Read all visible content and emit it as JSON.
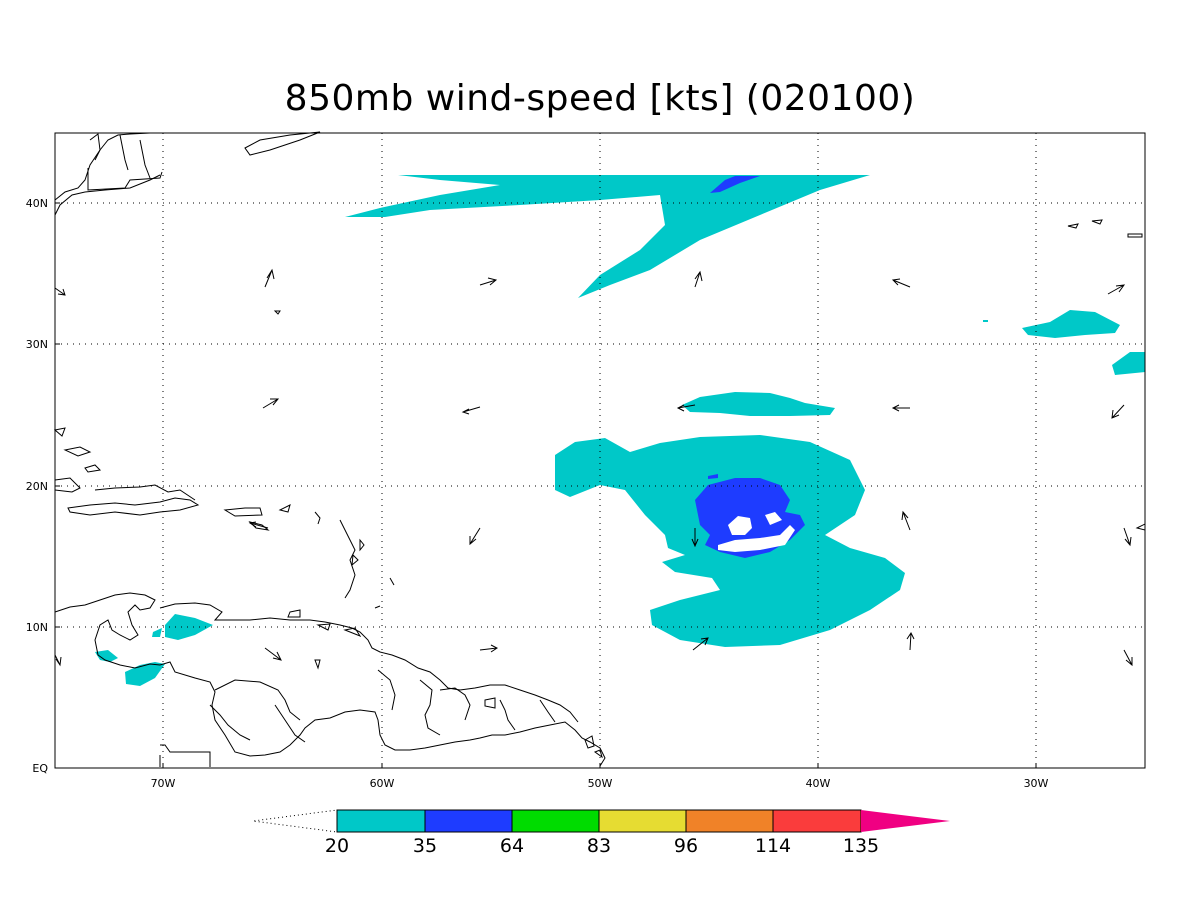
{
  "title": "850mb wind-speed [kts] (020100)",
  "map": {
    "lon_ticks": [
      "70W",
      "60W",
      "50W",
      "40W",
      "30W"
    ],
    "lat_ticks": [
      "40N",
      "30N",
      "20N",
      "10N",
      "EQ"
    ],
    "grid": "dotted",
    "extent": {
      "lon": [
        -75,
        -25
      ],
      "lat": [
        0,
        45
      ]
    },
    "shading_colors": {
      "20-35": "#00c8c8",
      "35-64": "#1e3cff",
      "64-83": "#00dc00",
      "83-96": "#e6dc32",
      "96-114": "#f08228",
      "114-135": "#fa3c3c",
      "135+": "#f00082"
    }
  },
  "colorbar": {
    "labels": [
      "20",
      "35",
      "64",
      "83",
      "96",
      "114",
      "135"
    ],
    "colors": [
      "#00c8c8",
      "#1e3cff",
      "#00dc00",
      "#e6dc32",
      "#f08228",
      "#fa3c3c",
      "#f00082"
    ]
  }
}
